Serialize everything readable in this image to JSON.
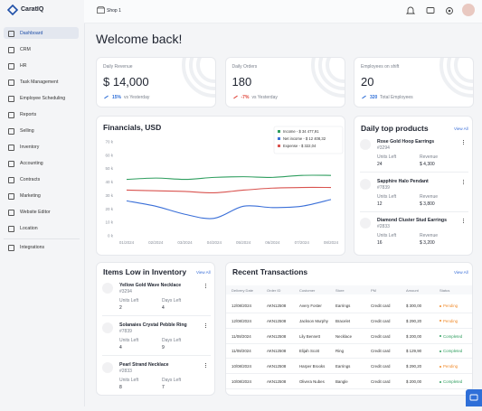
{
  "brand": "CaratIQ",
  "nav": [
    "Dashboard",
    "CRM",
    "HR",
    "Task Management",
    "Employee Scheduling",
    "Reports",
    "Selling",
    "Inventory",
    "Accounting",
    "Contracts",
    "Marketing",
    "Website Editor",
    "Location",
    "Integrations"
  ],
  "topbar": {
    "shop": "Shop 1"
  },
  "greeting": "Welcome back!",
  "stats": [
    {
      "label": "Daily Revenue",
      "value": "$ 14,000",
      "change": "15%",
      "note": "vs Yesterday",
      "color": "#2f6fd8"
    },
    {
      "label": "Daily Orders",
      "value": 180,
      "change": "-7%",
      "note": "vs Yesterday",
      "color": "#e0453a"
    },
    {
      "label": "Employees on shift",
      "value": 20,
      "change": 320,
      "note": "Total Employees",
      "color": "#2f6fd8"
    }
  ],
  "financials": {
    "type": "line",
    "title": "Financials, USD",
    "categories": [
      "01/2024",
      "02/2024",
      "03/2024",
      "04/2024",
      "05/2024",
      "06/2024",
      "07/2024",
      "08/2024"
    ],
    "series": [
      {
        "name": "Income - $ 34 477,91",
        "color": "#2f9e5f",
        "values": [
          42000,
          43000,
          42000,
          43500,
          44000,
          43500,
          45000,
          45000
        ]
      },
      {
        "name": "Net income - $ 12 408,32",
        "color": "#3a6fd8",
        "values": [
          26000,
          22000,
          16000,
          13000,
          22000,
          21000,
          22000,
          27000
        ]
      },
      {
        "name": "Expense - $ 322,04",
        "color": "#d9534f",
        "values": [
          34000,
          33500,
          33000,
          32000,
          34000,
          35500,
          36000,
          36000
        ]
      }
    ],
    "ylim": [
      0,
      70000
    ],
    "yticks": [
      {
        "value": 0,
        "label": "0 k"
      },
      {
        "value": 10000,
        "label": "10 k"
      },
      {
        "value": 20000,
        "label": "20 k"
      },
      {
        "value": 30000,
        "label": "30 k"
      },
      {
        "value": 40000,
        "label": "40 k"
      },
      {
        "value": 50000,
        "label": "50 k"
      },
      {
        "value": 60000,
        "label": "60 k"
      },
      {
        "value": 70000,
        "label": "70 k"
      }
    ],
    "grid": false
  },
  "top_products": {
    "title": "Daily top products",
    "link": "View All",
    "items": [
      {
        "name": "Rose Gold Hoop Earrings",
        "id": "#3294",
        "units_label": "Units Left",
        "units": 24,
        "revenue_label": "Revenue",
        "revenue": "$ 4,300"
      },
      {
        "name": "Sapphire Halo Pendant",
        "id": "#7839",
        "units_label": "Units Left",
        "units": 12,
        "revenue_label": "Revenue",
        "revenue": "$ 3,800"
      },
      {
        "name": "Diamond Cluster Stud Earrings",
        "id": "#2833",
        "units_label": "Units Left",
        "units": 16,
        "revenue_label": "Revenue",
        "revenue": "$ 3,200"
      }
    ]
  },
  "low_inventory": {
    "title": "Items Low in Inventory",
    "link": "View All",
    "items": [
      {
        "name": "Yellow Gold Wave Necklace",
        "id": "#3294",
        "units_label": "Units Left",
        "units": 2,
        "days_label": "Days Left",
        "days": 4
      },
      {
        "name": "Solanaies Crystal Pebble Ring",
        "id": "#7839",
        "units_label": "Units Left",
        "units": 4,
        "days_label": "Days Left",
        "days": 9
      },
      {
        "name": "Pearl Strand Necklace",
        "id": "#2833",
        "units_label": "Units Left",
        "units": 8,
        "days_label": "Days Left",
        "days": 7
      }
    ]
  },
  "transactions": {
    "title": "Recent Transactions",
    "link": "View All",
    "columns": [
      "Delivery Date",
      "Order ID",
      "Customer",
      "Store",
      "PM",
      "Amount",
      "Status"
    ],
    "rows": [
      {
        "cells": [
          "12/08/2024",
          "AKN12508",
          "Avery Foster",
          "Earrings",
          "Credit card",
          "$ 300,00",
          "Pending"
        ],
        "status_color": "#f08c2e"
      },
      {
        "cells": [
          "12/08/2024",
          "AKN12508",
          "Jackson Murphy",
          "Bracelet",
          "Credit card",
          "$ 290,20",
          "Pending"
        ],
        "status_color": "#f08c2e"
      },
      {
        "cells": [
          "11/08/2024",
          "AKN12508",
          "Lily Bennett",
          "Necklace",
          "Credit card",
          "$ 200,00",
          "Completed"
        ],
        "status_color": "#2f9e5f"
      },
      {
        "cells": [
          "11/08/2024",
          "AKN12508",
          "Elijah Scott",
          "Ring",
          "Credit card",
          "$ 129,90",
          "Completed"
        ],
        "status_color": "#2f9e5f"
      },
      {
        "cells": [
          "10/08/2024",
          "AKN12508",
          "Harper Brooks",
          "Earrings",
          "Credit card",
          "$ 290,20",
          "Pending"
        ],
        "status_color": "#f08c2e"
      },
      {
        "cells": [
          "10/08/2024",
          "AKN12508",
          "Olivera Nubes",
          "Bangle",
          "Credit card",
          "$ 200,00",
          "Completed"
        ],
        "status_color": "#2f9e5f"
      }
    ]
  }
}
